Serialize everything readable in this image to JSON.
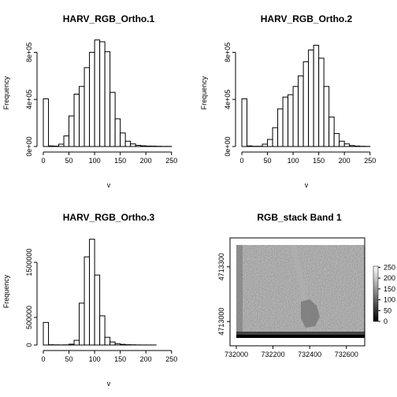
{
  "chart_data": [
    {
      "type": "bar",
      "title": "HARV_RGB_Ortho.1",
      "xlabel": "v",
      "ylabel": "Frequency",
      "xlim": [
        0,
        255
      ],
      "ylim": [
        0,
        950000
      ],
      "bin_width": 10,
      "x_ticks": [
        0,
        50,
        100,
        150,
        200,
        250
      ],
      "y_ticks": [
        0,
        400000,
        800000
      ],
      "y_tick_labels": [
        "0e+00",
        "4e+05",
        "8e+05"
      ],
      "bins": [
        0,
        10,
        20,
        30,
        40,
        50,
        60,
        70,
        80,
        90,
        100,
        110,
        120,
        130,
        140,
        150,
        160,
        170,
        180,
        190,
        200,
        210,
        220,
        230,
        240,
        250
      ],
      "values": [
        405000,
        5000,
        3000,
        20000,
        90000,
        260000,
        445000,
        510000,
        670000,
        800000,
        905000,
        890000,
        805000,
        460000,
        235000,
        115000,
        45000,
        22000,
        10000,
        6000,
        4000,
        3000,
        2000,
        1000,
        1000,
        0
      ]
    },
    {
      "type": "bar",
      "title": "HARV_RGB_Ortho.2",
      "xlabel": "v",
      "ylabel": "Frequency",
      "xlim": [
        0,
        255
      ],
      "ylim": [
        0,
        950000
      ],
      "bin_width": 10,
      "x_ticks": [
        0,
        50,
        100,
        150,
        200,
        250
      ],
      "y_ticks": [
        0,
        400000,
        800000
      ],
      "y_tick_labels": [
        "0e+00",
        "4e+05",
        "8e+05"
      ],
      "bins": [
        0,
        10,
        20,
        30,
        40,
        50,
        60,
        70,
        80,
        90,
        100,
        110,
        120,
        130,
        140,
        150,
        160,
        170,
        180,
        190,
        200,
        210,
        220,
        230,
        240,
        250
      ],
      "values": [
        405000,
        5000,
        2000,
        2000,
        20000,
        60000,
        160000,
        320000,
        420000,
        440000,
        510000,
        600000,
        720000,
        820000,
        860000,
        750000,
        510000,
        250000,
        110000,
        45000,
        22000,
        8000,
        4000,
        2000,
        1000,
        0
      ]
    },
    {
      "type": "bar",
      "title": "HARV_RGB_Ortho.3",
      "xlabel": "v",
      "ylabel": "Frequency",
      "xlim": [
        0,
        255
      ],
      "ylim": [
        0,
        2030000
      ],
      "bin_width": 10,
      "x_ticks": [
        0,
        50,
        100,
        150,
        200,
        250
      ],
      "y_ticks": [
        0,
        500000,
        1500000
      ],
      "y_tick_labels": [
        "0",
        "500000",
        "1500000"
      ],
      "bins": [
        0,
        10,
        20,
        30,
        40,
        50,
        60,
        70,
        80,
        90,
        100,
        110,
        120,
        130,
        140,
        150,
        160,
        170,
        180,
        190,
        200,
        210,
        220,
        230,
        240,
        250
      ],
      "values": [
        410000,
        5000,
        3000,
        2000,
        3000,
        15000,
        85000,
        760000,
        1600000,
        1920000,
        1270000,
        530000,
        140000,
        55000,
        25000,
        12000,
        6000,
        4000,
        2000,
        1000,
        1000,
        1000,
        0,
        0,
        0,
        0
      ]
    },
    {
      "type": "heatmap",
      "title": "RGB_stack Band 1",
      "xlim": [
        732000,
        732700
      ],
      "ylim": [
        4712910,
        4713420
      ],
      "x_ticks": [
        732000,
        732200,
        732400,
        732600
      ],
      "y_ticks": [
        4713000,
        4713300
      ],
      "legend_ticks": [
        0,
        50,
        100,
        150,
        200,
        250
      ],
      "legend_range": [
        0,
        255
      ],
      "palette": [
        "#000000",
        "#ffffff"
      ]
    }
  ]
}
